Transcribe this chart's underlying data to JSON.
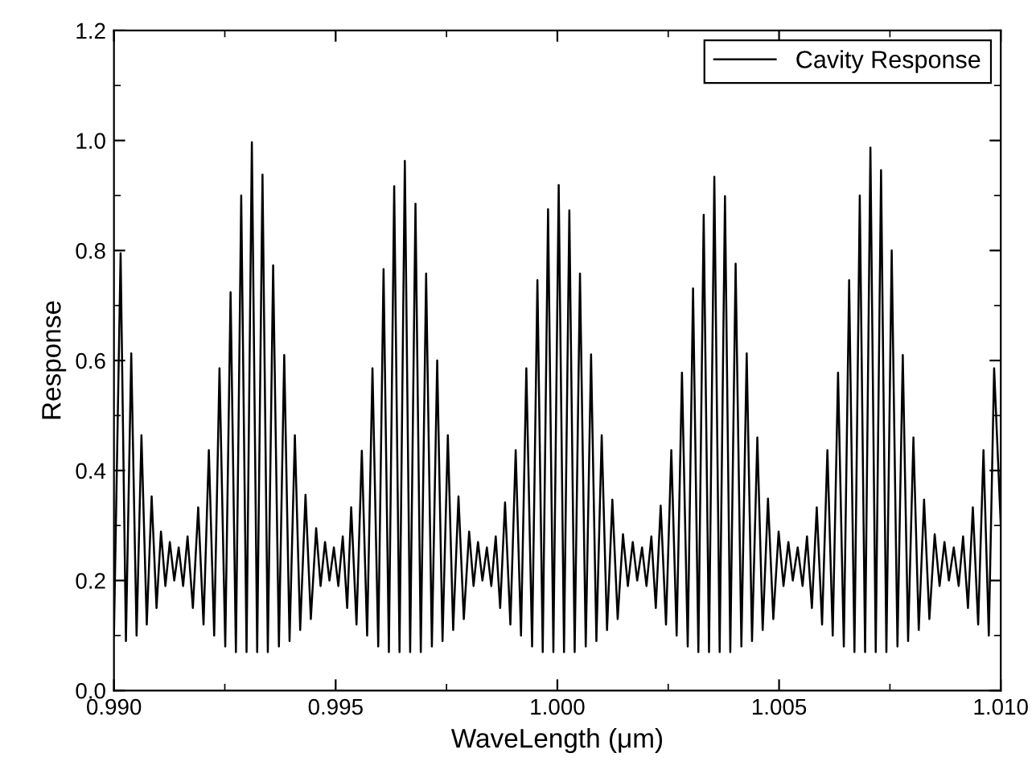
{
  "chart_data": {
    "type": "line",
    "xlabel": "WaveLength (μm)",
    "ylabel": "Response",
    "xlim": [
      0.99,
      1.01
    ],
    "ylim": [
      0.0,
      1.2
    ],
    "xticks": [
      {
        "value": 0.99,
        "label": "0.990"
      },
      {
        "value": 0.9925,
        "label": null
      },
      {
        "value": 0.995,
        "label": "0.995"
      },
      {
        "value": 0.9975,
        "label": null
      },
      {
        "value": 1.0,
        "label": "1.000"
      },
      {
        "value": 1.0025,
        "label": null
      },
      {
        "value": 1.005,
        "label": "1.005"
      },
      {
        "value": 1.0075,
        "label": null
      },
      {
        "value": 1.01,
        "label": "1.010"
      }
    ],
    "yticks": [
      {
        "value": 0.0,
        "label": "0.0"
      },
      {
        "value": 0.1,
        "label": null
      },
      {
        "value": 0.2,
        "label": "0.2"
      },
      {
        "value": 0.3,
        "label": null
      },
      {
        "value": 0.4,
        "label": "0.4"
      },
      {
        "value": 0.5,
        "label": null
      },
      {
        "value": 0.6,
        "label": "0.6"
      },
      {
        "value": 0.7,
        "label": null
      },
      {
        "value": 0.8,
        "label": "0.8"
      },
      {
        "value": 0.9,
        "label": null
      },
      {
        "value": 1.0,
        "label": "1.0"
      },
      {
        "value": 1.1,
        "label": null
      },
      {
        "value": 1.2,
        "label": "1.2"
      }
    ],
    "grid": false,
    "legend": "top right",
    "marker": "none",
    "line_style": "solid",
    "series": [
      {
        "name": "Cavity Response",
        "color": "#000000",
        "x": [
          0.99,
          0.99015,
          0.99027,
          0.99039,
          0.99051,
          0.99062,
          0.99074,
          0.99085,
          0.99096,
          0.99106,
          0.99116,
          0.99126,
          0.99136,
          0.99146,
          0.99156,
          0.99166,
          0.99178,
          0.9919,
          0.99202,
          0.99214,
          0.99226,
          0.99238,
          0.99251,
          0.99263,
          0.99275,
          0.99287,
          0.99299,
          0.99311,
          0.99323,
          0.99335,
          0.99347,
          0.99359,
          0.99372,
          0.99384,
          0.99396,
          0.99408,
          0.9942,
          0.99432,
          0.99444,
          0.99456,
          0.99466,
          0.99476,
          0.99486,
          0.99496,
          0.99506,
          0.99516,
          0.99526,
          0.99535,
          0.99547,
          0.99559,
          0.99571,
          0.99583,
          0.99596,
          0.99608,
          0.9962,
          0.99632,
          0.99644,
          0.99656,
          0.99668,
          0.9968,
          0.99692,
          0.99704,
          0.99717,
          0.99729,
          0.99741,
          0.99753,
          0.99765,
          0.99777,
          0.99789,
          0.99801,
          0.99811,
          0.99821,
          0.99831,
          0.99841,
          0.99851,
          0.99861,
          0.99871,
          0.99882,
          0.99894,
          0.99906,
          0.99918,
          0.9993,
          0.99943,
          0.99955,
          0.99967,
          0.99979,
          0.99991,
          1.00003,
          1.00015,
          1.00027,
          1.00039,
          1.00051,
          1.00064,
          1.00076,
          1.00088,
          1.001,
          1.00112,
          1.00124,
          1.00136,
          1.00148,
          1.00159,
          1.0017,
          1.0018,
          1.00191,
          1.00201,
          1.00212,
          1.00222,
          1.00233,
          1.00245,
          1.00257,
          1.00269,
          1.00281,
          1.00294,
          1.00306,
          1.00318,
          1.0033,
          1.00342,
          1.00354,
          1.00366,
          1.00378,
          1.0039,
          1.00402,
          1.00415,
          1.00427,
          1.00439,
          1.00451,
          1.00463,
          1.00475,
          1.00487,
          1.00499,
          1.0051,
          1.00521,
          1.00531,
          1.00542,
          1.00553,
          1.00563,
          1.00574,
          1.00585,
          1.00597,
          1.00609,
          1.00621,
          1.00633,
          1.00646,
          1.00658,
          1.0067,
          1.00682,
          1.00694,
          1.00706,
          1.00718,
          1.0073,
          1.00742,
          1.00754,
          1.00767,
          1.00779,
          1.00791,
          1.00803,
          1.00815,
          1.00827,
          1.00839,
          1.00851,
          1.00862,
          1.00873,
          1.00883,
          1.00894,
          1.00905,
          1.00915,
          1.00926,
          1.00937,
          1.00949,
          1.00961,
          1.00973,
          1.00985,
          1.01
        ],
        "values": [
          0.1,
          0.795,
          0.09,
          0.613,
          0.1,
          0.464,
          0.12,
          0.353,
          0.15,
          0.289,
          0.19,
          0.27,
          0.2,
          0.26,
          0.19,
          0.28,
          0.15,
          0.333,
          0.12,
          0.437,
          0.1,
          0.586,
          0.08,
          0.724,
          0.07,
          0.9,
          0.07,
          0.997,
          0.07,
          0.938,
          0.07,
          0.773,
          0.08,
          0.61,
          0.09,
          0.464,
          0.11,
          0.356,
          0.13,
          0.295,
          0.19,
          0.27,
          0.2,
          0.26,
          0.19,
          0.28,
          0.15,
          0.333,
          0.12,
          0.436,
          0.1,
          0.586,
          0.08,
          0.766,
          0.07,
          0.917,
          0.07,
          0.963,
          0.07,
          0.885,
          0.07,
          0.758,
          0.08,
          0.6,
          0.09,
          0.464,
          0.11,
          0.353,
          0.13,
          0.289,
          0.19,
          0.27,
          0.2,
          0.26,
          0.19,
          0.28,
          0.15,
          0.342,
          0.12,
          0.437,
          0.1,
          0.586,
          0.08,
          0.746,
          0.07,
          0.875,
          0.07,
          0.919,
          0.07,
          0.873,
          0.07,
          0.758,
          0.08,
          0.611,
          0.09,
          0.464,
          0.11,
          0.347,
          0.13,
          0.284,
          0.19,
          0.27,
          0.2,
          0.26,
          0.19,
          0.28,
          0.15,
          0.336,
          0.12,
          0.437,
          0.1,
          0.578,
          0.08,
          0.731,
          0.07,
          0.865,
          0.07,
          0.934,
          0.07,
          0.899,
          0.07,
          0.776,
          0.08,
          0.613,
          0.09,
          0.46,
          0.11,
          0.349,
          0.13,
          0.289,
          0.19,
          0.27,
          0.2,
          0.26,
          0.19,
          0.28,
          0.15,
          0.333,
          0.12,
          0.437,
          0.1,
          0.578,
          0.08,
          0.746,
          0.07,
          0.9,
          0.07,
          0.987,
          0.07,
          0.946,
          0.07,
          0.8,
          0.08,
          0.61,
          0.09,
          0.46,
          0.11,
          0.347,
          0.13,
          0.284,
          0.19,
          0.27,
          0.2,
          0.26,
          0.19,
          0.28,
          0.15,
          0.333,
          0.12,
          0.437,
          0.1,
          0.586,
          0.3
        ]
      }
    ]
  }
}
